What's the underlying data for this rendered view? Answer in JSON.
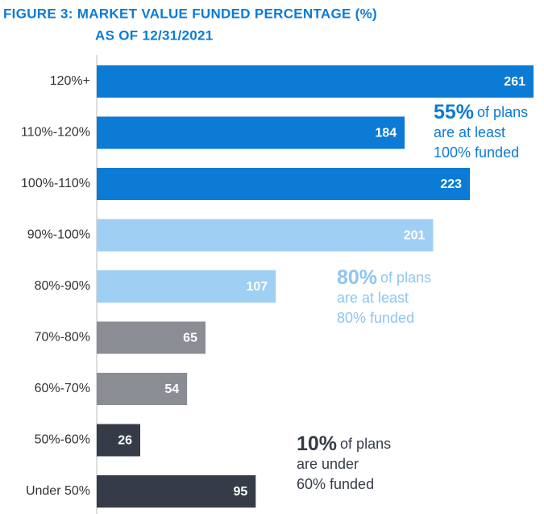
{
  "chart_data": {
    "type": "bar",
    "orientation": "horizontal",
    "title": [
      "FIGURE 3: MARKET VALUE FUNDED PERCENTAGE (%)",
      "AS OF 12/31/2021"
    ],
    "categories": [
      "120%+",
      "110%-120%",
      "100%-110%",
      "90%-100%",
      "80%-90%",
      "70%-80%",
      "60%-70%",
      "50%-60%",
      "Under 50%"
    ],
    "values": [
      261,
      184,
      223,
      201,
      107,
      65,
      54,
      26,
      95
    ],
    "colors": [
      "#0b7bd6",
      "#0b7bd6",
      "#0b7bd6",
      "#9fcff3",
      "#9fcff3",
      "#8a8d93",
      "#8a8d93",
      "#363c47",
      "#363c47"
    ],
    "annotations": [
      {
        "highlight": "55%",
        "lines": [
          "of plans",
          "are at least",
          "100% funded"
        ],
        "color": "#0b7bd6"
      },
      {
        "highlight": "80%",
        "lines": [
          "of plans",
          "are at least",
          "80% funded"
        ],
        "color": "#8ec6f0"
      },
      {
        "highlight": "10%",
        "lines": [
          "of plans",
          "are under",
          "60% funded"
        ],
        "color": "#363c47"
      }
    ]
  }
}
